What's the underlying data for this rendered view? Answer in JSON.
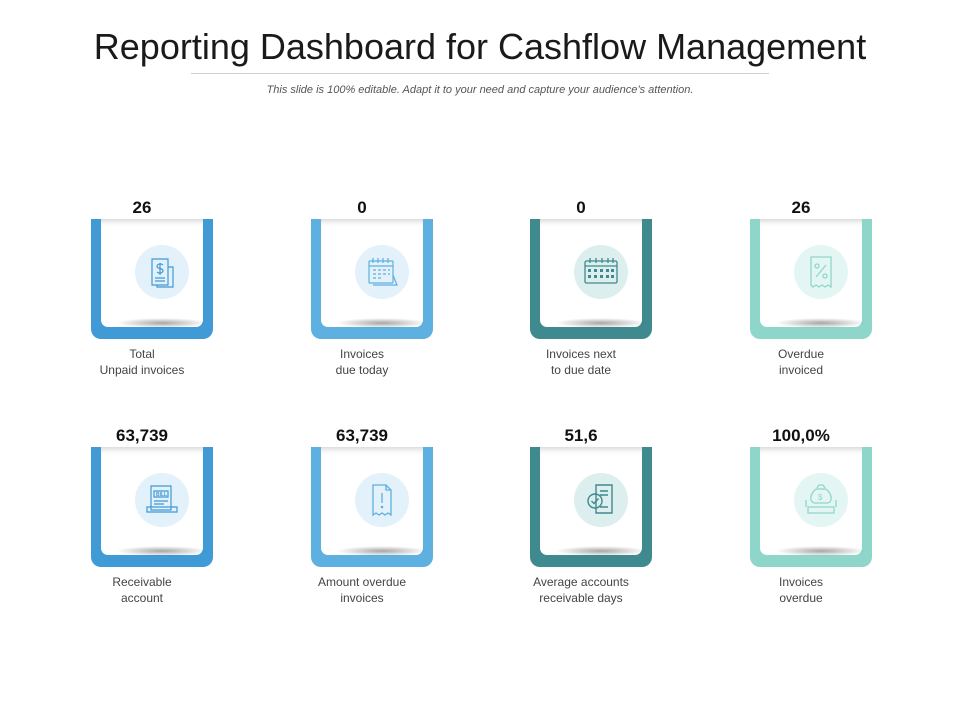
{
  "header": {
    "title": "Reporting Dashboard for Cashflow Management",
    "subtitle": "This slide is 100% editable. Adapt it to your need and capture your audience’s attention."
  },
  "colors": {
    "blue": "#3f9ad6",
    "light_blue": "#5eb0e0",
    "teal": "#3f8a8f",
    "mint": "#8fd6ca"
  },
  "cards": [
    {
      "value": "26",
      "label": "Total\nUnpaid invoices",
      "icon": "invoice-dollar-icon"
    },
    {
      "value": "0",
      "label": "Invoices\ndue today",
      "icon": "calendar-icon"
    },
    {
      "value": "0",
      "label": "Invoices next\nto due date",
      "icon": "calendar-grid-icon"
    },
    {
      "value": "26",
      "label": "Overdue\ninvoiced",
      "icon": "percent-receipt-icon"
    },
    {
      "value": "63,739",
      "label": "Receivable\naccount",
      "icon": "bill-icon"
    },
    {
      "value": "63,739",
      "label": "Amount overdue\ninvoices",
      "icon": "alert-document-icon"
    },
    {
      "value": "51,6",
      "label": "Average accounts\nreceivable days",
      "icon": "checked-document-icon"
    },
    {
      "value": "100,0%",
      "label": "Invoices\noverdue",
      "icon": "money-bag-icon"
    }
  ]
}
